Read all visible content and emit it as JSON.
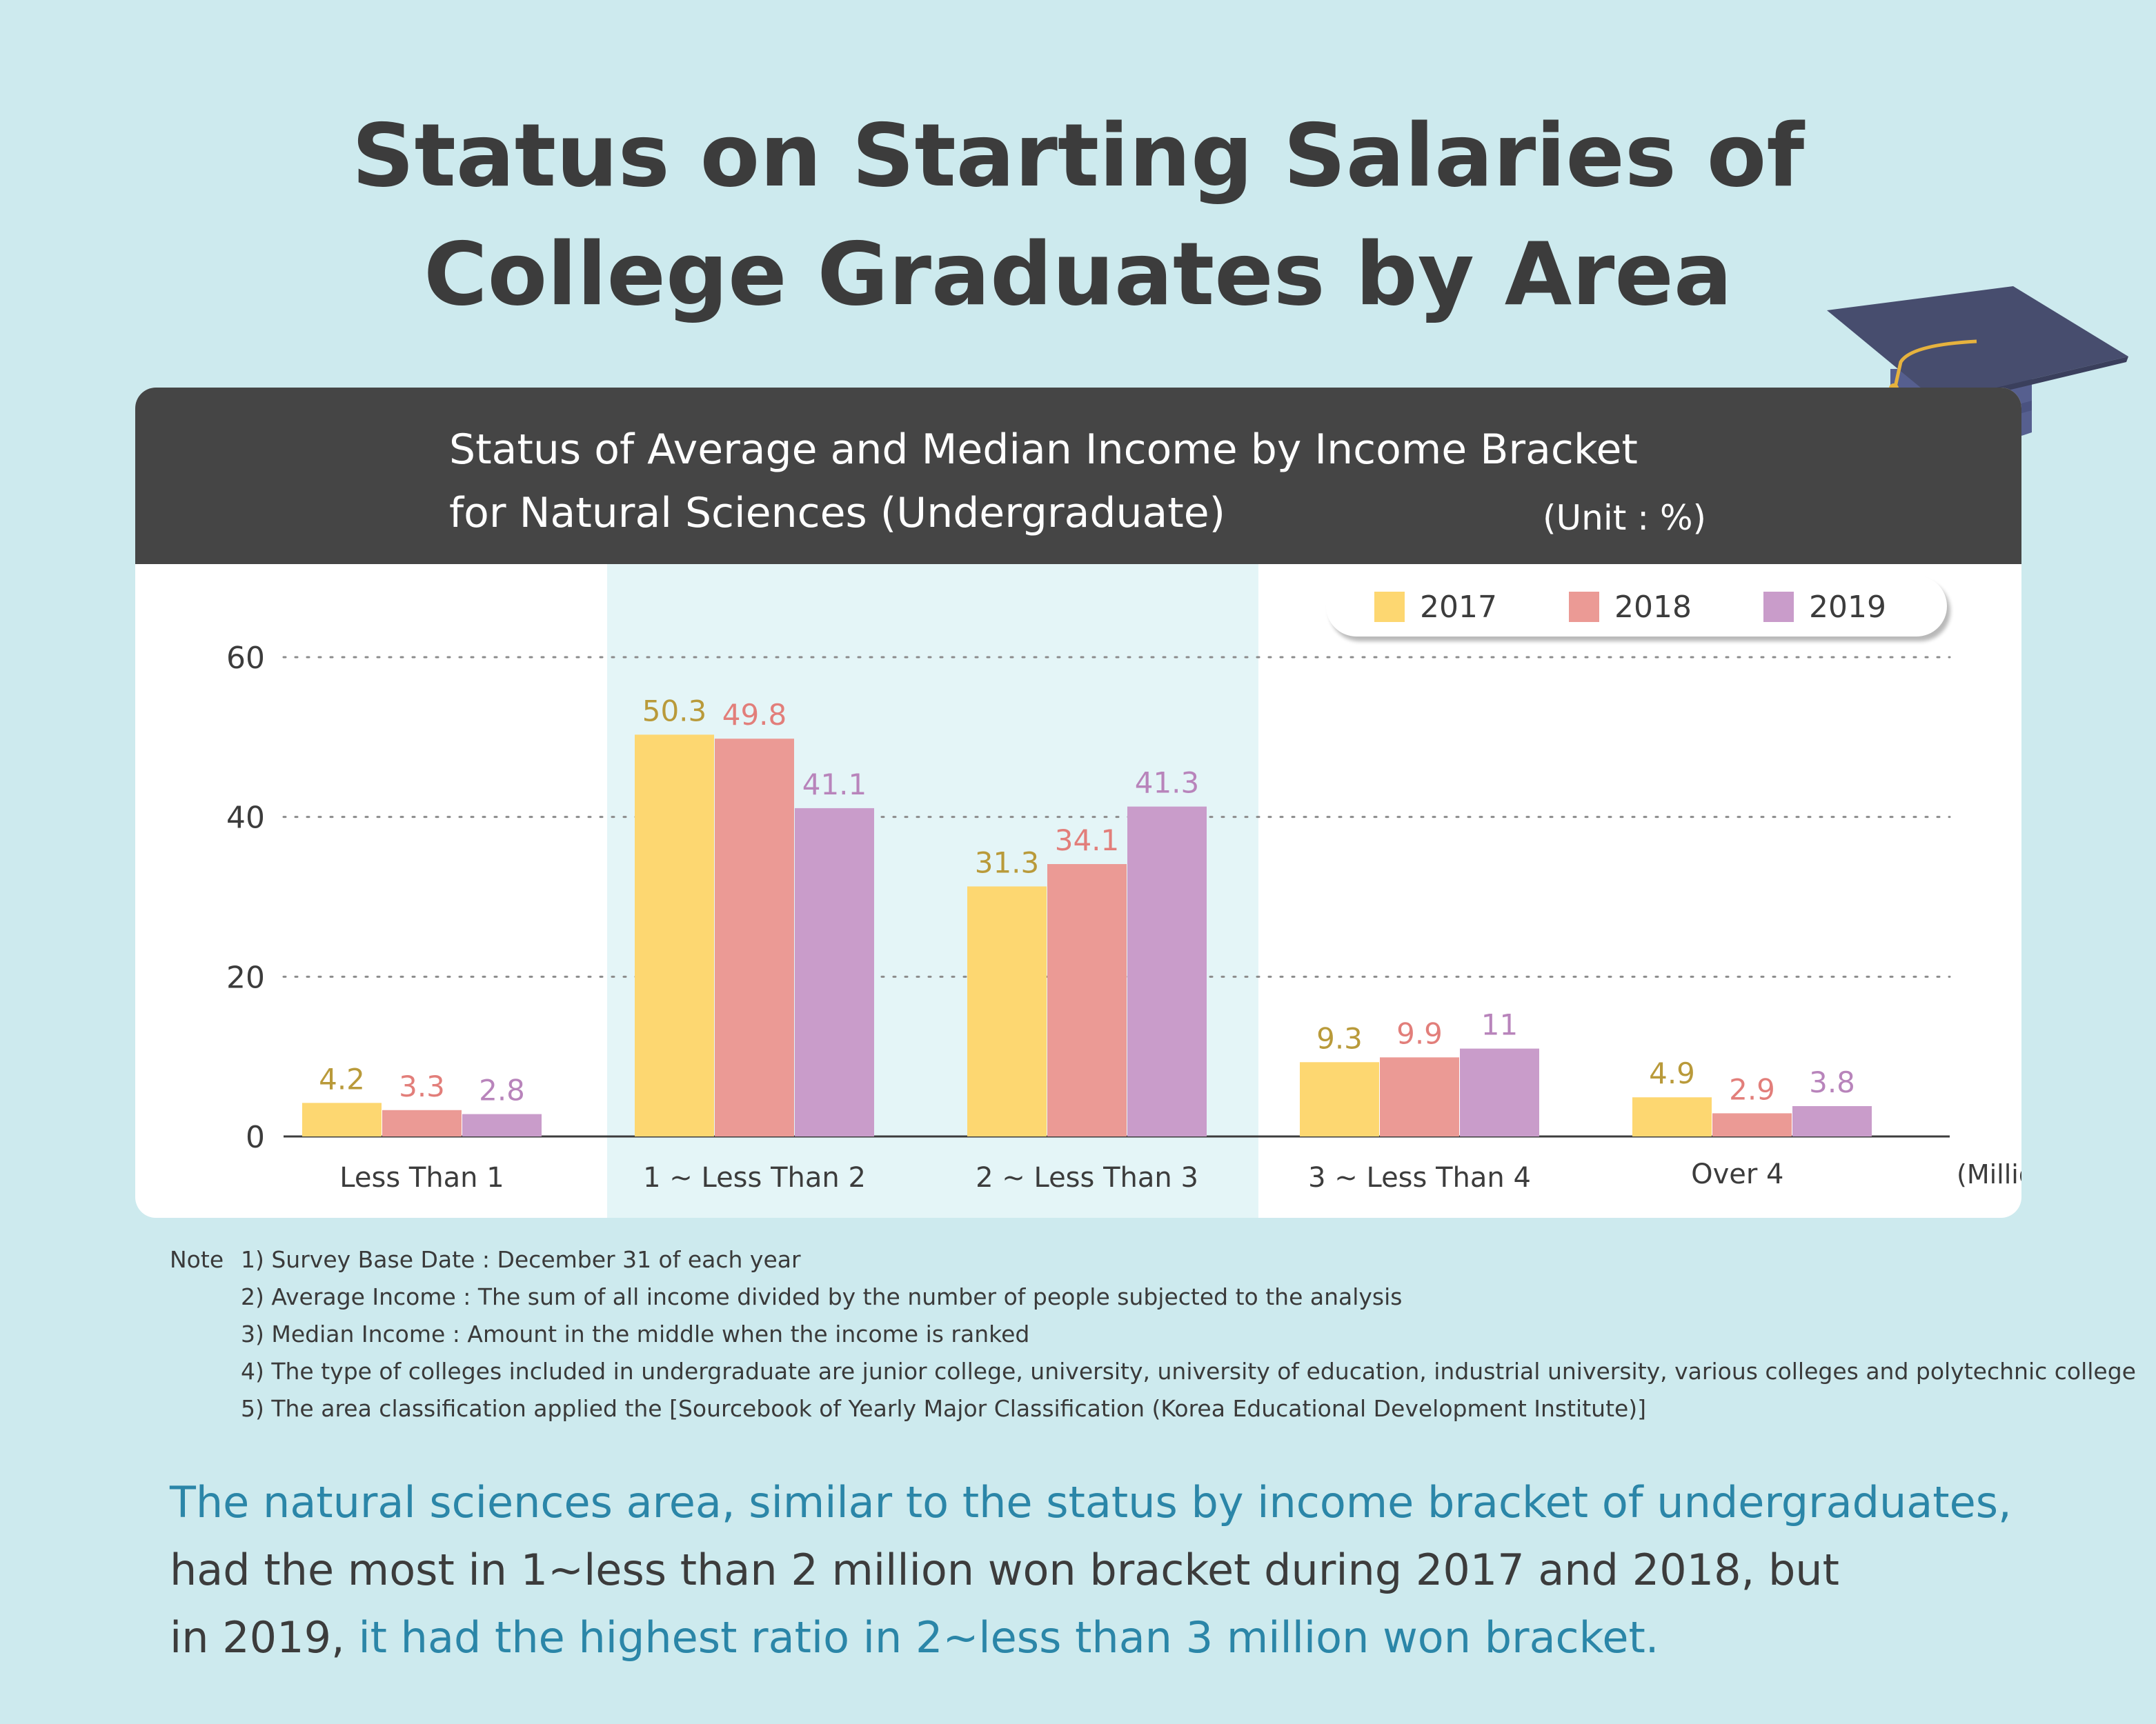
{
  "title": {
    "line1": "Status on Starting Salaries of",
    "line2": "College Graduates by Area"
  },
  "chart_header": {
    "line1": "Status of Average and Median Income by Income Bracket",
    "line2": "for Natural Sciences (Undergraduate)",
    "unit": "(Unit : %)"
  },
  "icons": {
    "graduation_cap": "graduation-cap-icon"
  },
  "colors": {
    "background": "#cdeaee",
    "header": "#454545",
    "highlight_band": "#e4f5f7",
    "series_2017": "#fdd771",
    "series_2018": "#eb9a95",
    "series_2019": "#c99cca",
    "label_2017": "#b99a3a",
    "label_2018": "#e27e7a",
    "label_2019": "#b884bb",
    "summary_highlight": "#2b86a8"
  },
  "chart_data": {
    "type": "bar",
    "title": "Status of Average and Median Income by Income Bracket for Natural Sciences (Undergraduate)",
    "unit": "(Unit : %)",
    "categories": [
      "Less Than 1",
      "1 ~ Less Than 2",
      "2 ~ Less Than 3",
      "3 ~ Less Than 4",
      "Over 4"
    ],
    "xlabel": "(Million KRW)",
    "ylabel": "",
    "ylim": [
      0,
      60
    ],
    "yticks": [
      0,
      20,
      40,
      60
    ],
    "grid": true,
    "legend_position": "top-right",
    "series": [
      {
        "name": "2017",
        "values": [
          4.2,
          50.3,
          31.3,
          9.3,
          4.9
        ]
      },
      {
        "name": "2018",
        "values": [
          3.3,
          49.8,
          34.1,
          9.9,
          2.9
        ]
      },
      {
        "name": "2019",
        "values": [
          2.8,
          41.1,
          41.3,
          11,
          3.8
        ]
      }
    ],
    "highlighted_categories": [
      "1 ~ Less Than 2",
      "2 ~ Less Than 3"
    ]
  },
  "notes": {
    "label": "Note",
    "items": [
      "1) Survey Base Date : December 31 of each year",
      "2) Average Income : The sum of all income divided by the number of people subjected to the analysis",
      "3) Median Income : Amount in the middle when the income is ranked",
      "4) The type of colleges included in undergraduate are junior college, university, university of education, industrial university, various colleges and polytechnic college",
      "5) The area classification applied the [Sourcebook of Yearly Major Classification (Korea Educational Development Institute)]"
    ]
  },
  "summary": {
    "line1": "The natural sciences area, similar to the status by income bracket of undergraduates,",
    "line2": "had the most in 1~less than 2 million won bracket during 2017 and 2018, but",
    "line3_prefix": "in 2019, ",
    "line3_highlight": "it had the highest ratio in 2~less than 3 million won bracket."
  }
}
